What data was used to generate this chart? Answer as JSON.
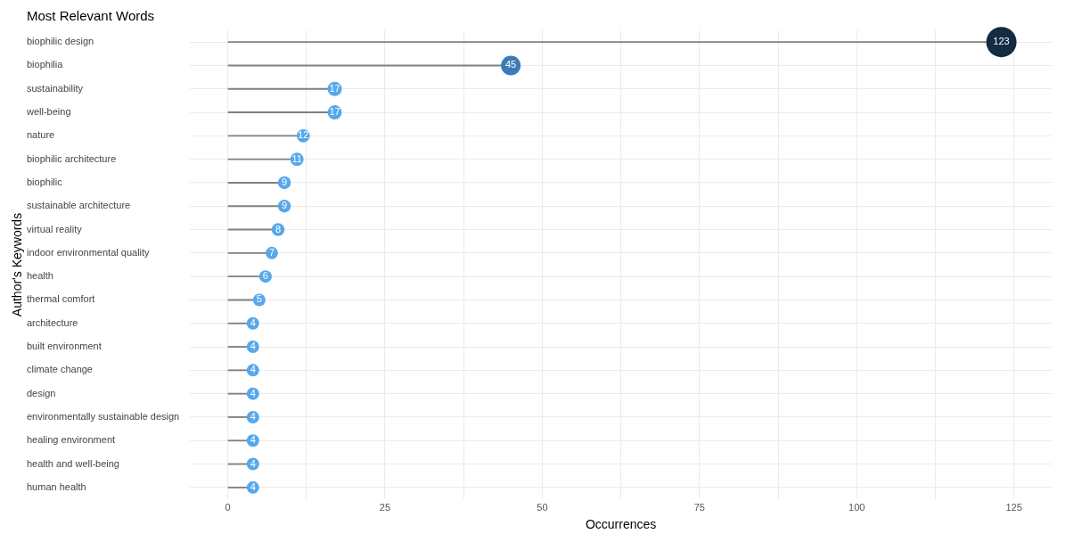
{
  "chart_data": {
    "type": "lollipop",
    "orientation": "horizontal",
    "title": "Most Relevant Words",
    "xlabel": "Occurrences",
    "ylabel": "Author's Keywords",
    "categories": [
      "biophilic design",
      "biophilia",
      "sustainability",
      "well-being",
      "nature",
      "biophilic architecture",
      "biophilic",
      "sustainable architecture",
      "virtual reality",
      "indoor environmental quality",
      "health",
      "thermal comfort",
      "architecture",
      "built environment",
      "climate change",
      "design",
      "environmentally sustainable design",
      "healing environment",
      "health and well-being",
      "human health"
    ],
    "values": [
      123,
      45,
      17,
      17,
      12,
      11,
      9,
      9,
      8,
      7,
      6,
      5,
      4,
      4,
      4,
      4,
      4,
      4,
      4,
      4
    ],
    "colors": [
      "#132b43",
      "#3a7cb8",
      "#56a8eb",
      "#56a8eb",
      "#56a8eb",
      "#56a8eb",
      "#56a8eb",
      "#56a8eb",
      "#56a8eb",
      "#56a8eb",
      "#56a8eb",
      "#56a8eb",
      "#56a8eb",
      "#56a8eb",
      "#56a8eb",
      "#56a8eb",
      "#56a8eb",
      "#56a8eb",
      "#56a8eb",
      "#56a8eb"
    ],
    "sizes": [
      1,
      0.42,
      0.22,
      0.22,
      0.19,
      0.19,
      0.18,
      0.18,
      0.18,
      0.17,
      0.17,
      0.17,
      0.17,
      0.17,
      0.17,
      0.17,
      0.17,
      0.17,
      0.17,
      0.17
    ],
    "xlim": [
      -6,
      131
    ],
    "xticks": [
      0,
      {
        "value": 12.5,
        "label": null
      },
      25,
      {
        "value": 37.5,
        "label": null
      },
      50,
      {
        "value": 62.5,
        "label": null
      },
      75,
      {
        "value": 87.5,
        "label": null
      },
      100,
      {
        "value": 112.5,
        "label": null
      },
      125
    ],
    "data_labels": true,
    "grid": true,
    "legend": false,
    "marker": "circle"
  }
}
